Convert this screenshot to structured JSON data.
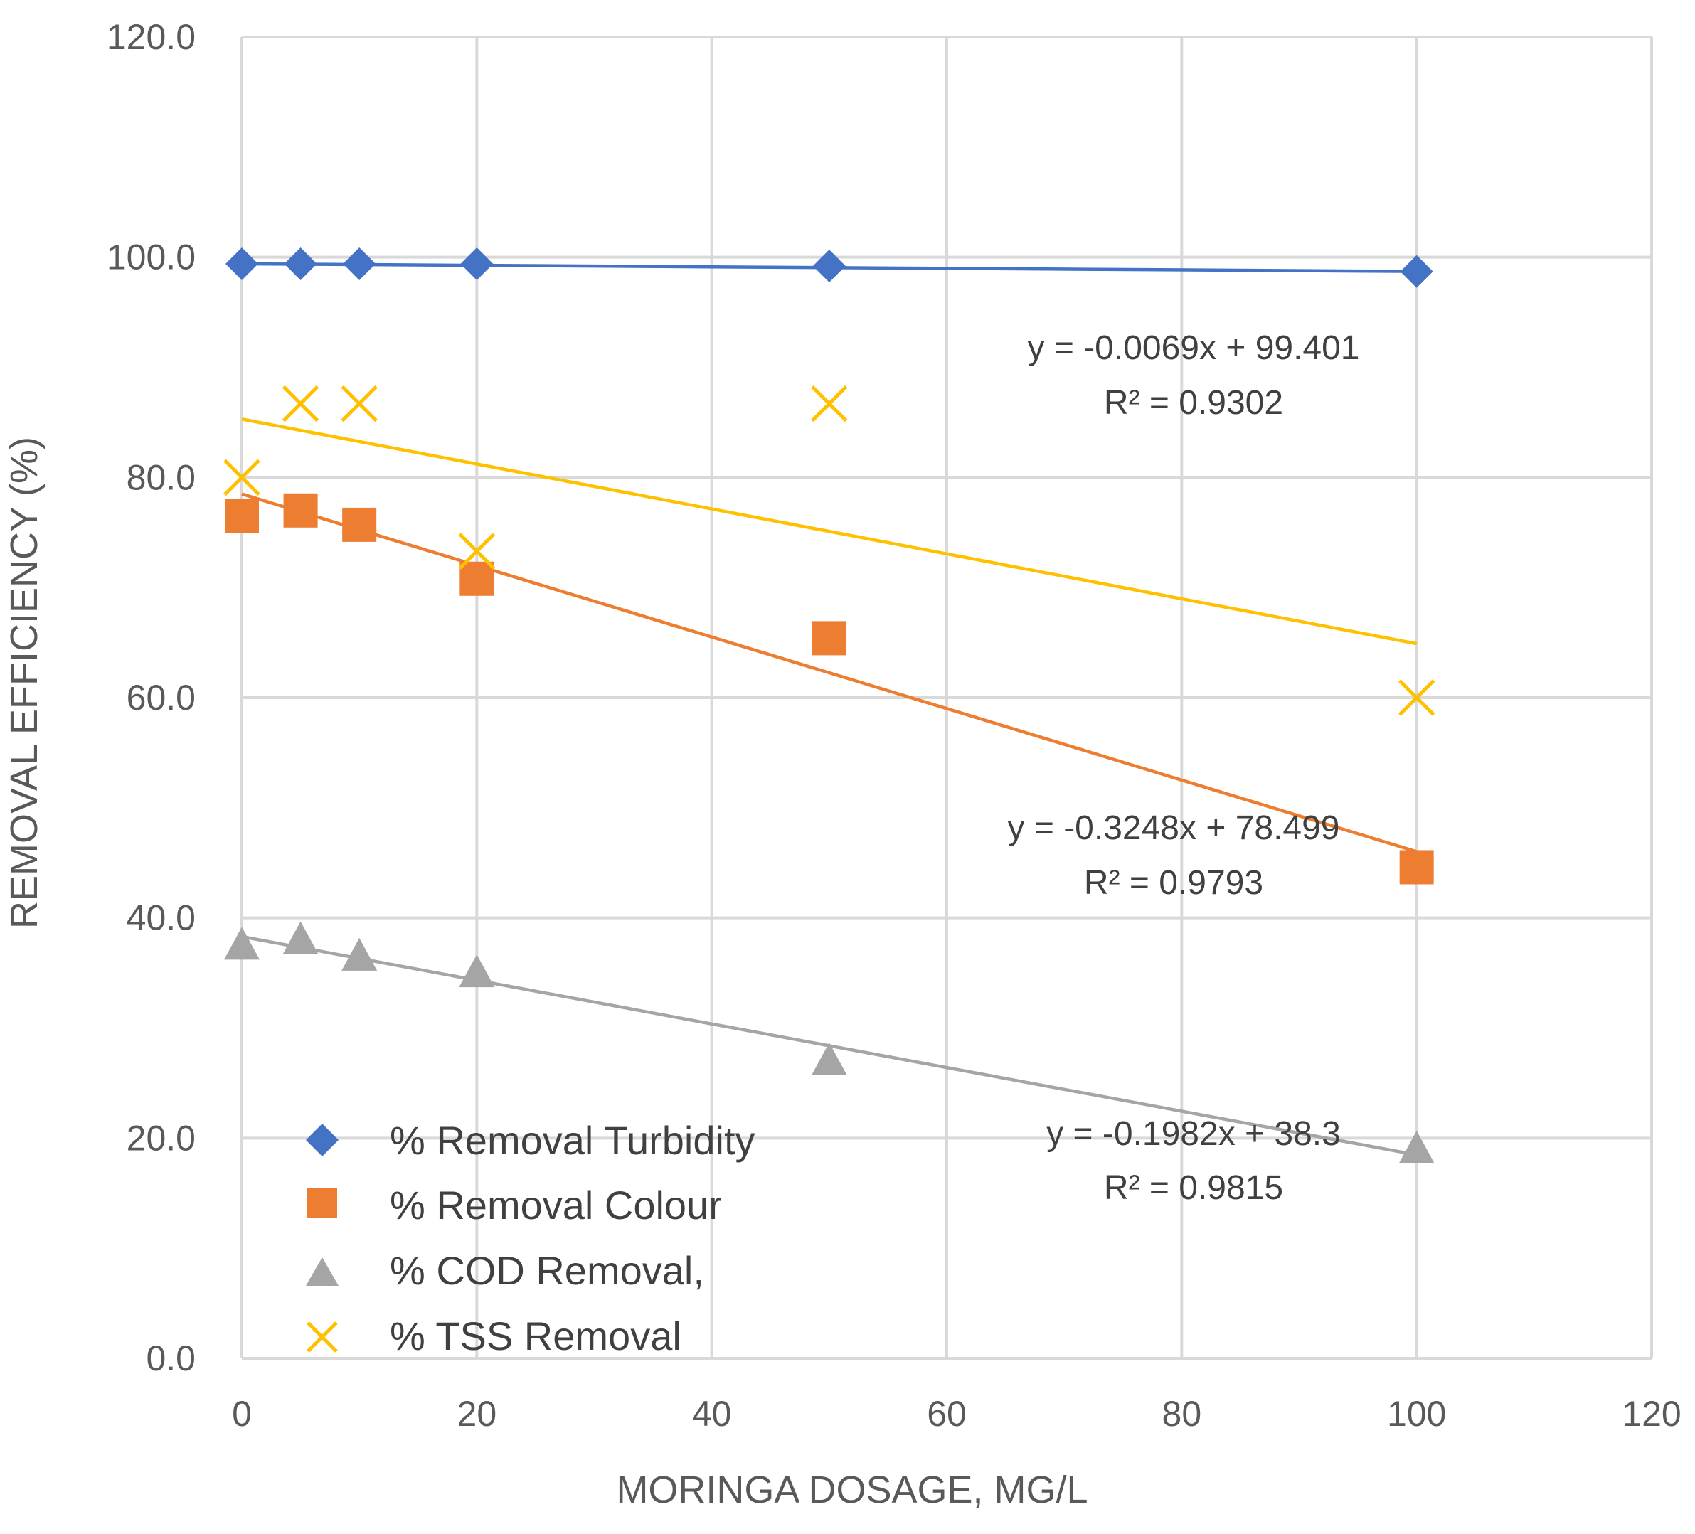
{
  "chart_data": {
    "type": "scatter",
    "xlabel": "MORINGA DOSAGE, MG/L",
    "ylabel": "REMOVAL EFFICIENCY (%)",
    "xlim": [
      0,
      120
    ],
    "ylim": [
      0,
      120
    ],
    "xticks": [
      "0",
      "20",
      "40",
      "60",
      "80",
      "100",
      "120"
    ],
    "yticks": [
      "0.0",
      "20.0",
      "40.0",
      "60.0",
      "80.0",
      "100.0",
      "120.0"
    ],
    "grid": true,
    "legend_position": "bottom-left",
    "series": [
      {
        "name": "% Removal Turbidity",
        "marker": "diamond",
        "color": "#4472C4",
        "x": [
          0,
          5,
          10,
          20,
          50,
          100
        ],
        "y": [
          99.4,
          99.4,
          99.4,
          99.4,
          99.2,
          98.7
        ],
        "trendline": {
          "slope": -0.0069,
          "intercept": 99.401
        },
        "equation": "y = -0.0069x + 99.401",
        "r2": "R² = 0.9302"
      },
      {
        "name": "% Removal Colour",
        "marker": "square",
        "color": "#ED7D31",
        "x": [
          0,
          5,
          10,
          20,
          50,
          100
        ],
        "y": [
          76.5,
          77.0,
          75.7,
          70.8,
          65.4,
          44.6
        ],
        "trendline": {
          "slope": -0.3248,
          "intercept": 78.499
        },
        "equation": "y = -0.3248x + 78.499",
        "r2": "R² = 0.9793"
      },
      {
        "name": "% COD Removal,",
        "marker": "triangle",
        "color": "#A5A5A5",
        "x": [
          0,
          5,
          10,
          20,
          50,
          100
        ],
        "y": [
          37.5,
          38.0,
          36.5,
          35.0,
          27.0,
          19.0
        ],
        "trendline": {
          "slope": -0.1982,
          "intercept": 38.3
        },
        "equation": "y = -0.1982x + 38.3",
        "r2": "R² = 0.9815"
      },
      {
        "name": "% TSS Removal",
        "marker": "x",
        "color": "#FFC000",
        "x": [
          0,
          5,
          10,
          20,
          50,
          100
        ],
        "y": [
          80.0,
          86.7,
          86.7,
          73.3,
          86.7,
          60.0
        ],
        "trendline": {
          "slope": -0.204,
          "intercept": 85.3
        }
      }
    ]
  }
}
